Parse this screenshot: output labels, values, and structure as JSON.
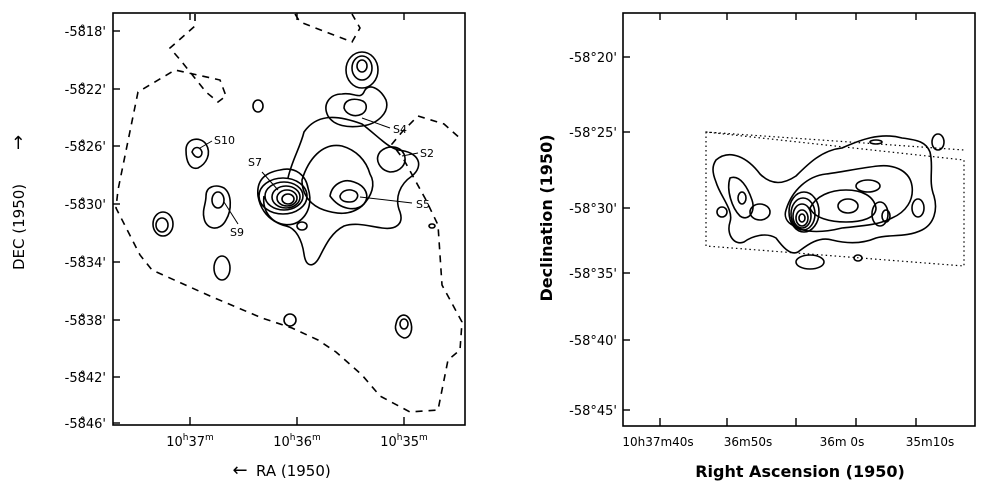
{
  "chart_data": [
    {
      "type": "contour",
      "title": "",
      "xlabel": "RA (1950)",
      "ylabel": "DEC (1950)",
      "x_tick_labels": [
        "10h37m",
        "10h36m",
        "10h35m"
      ],
      "y_tick_labels": [
        "-58°18'",
        "-58°22'",
        "-58°26'",
        "-58°30'",
        "-58°34'",
        "-58°38'",
        "-58°42'",
        "-58°46'"
      ],
      "sources": [
        "S10",
        "S7",
        "S4",
        "S2",
        "S5",
        "S9"
      ],
      "boundary": "dashed",
      "grid": false
    },
    {
      "type": "contour",
      "title": "",
      "xlabel": "Right Ascension (1950)",
      "ylabel": "Declination (1950)",
      "x_tick_labels": [
        "10h37m40s",
        "36m50s",
        "36m0s",
        "35m10s"
      ],
      "y_tick_labels": [
        "-58°20'",
        "-58°25'",
        "-58°30'",
        "-58°35'",
        "-58°40'",
        "-58°45'"
      ],
      "boundary": "dotted",
      "grid": false
    }
  ],
  "left": {
    "ytick_display": [
      "-58̊18'",
      "-58̊22'",
      "-58̊26'",
      "-58̊30'",
      "-58̊34'",
      "-58̊38'",
      "-58̊42'",
      "-58̊46'"
    ],
    "xtick_display": [
      {
        "h": "10",
        "m": "37"
      },
      {
        "h": "10",
        "m": "36"
      },
      {
        "h": "10",
        "m": "35"
      }
    ],
    "xlabel_arrow": "←",
    "xlabel_text": "RA (1950)",
    "ylabel_text": "DEC (1950)",
    "ylabel_arrow": "→"
  },
  "right": {
    "ytick_display": [
      "-58°20'",
      "-58°25'",
      "-58°30'",
      "-58°35'",
      "-58°40'",
      "-58°45'"
    ],
    "xtick_display": [
      "10h37m40s",
      "36m50s",
      "36m 0s",
      "35m10s"
    ],
    "xlabel_text": "Right Ascension (1950)",
    "ylabel_text": "Declination (1950)"
  }
}
